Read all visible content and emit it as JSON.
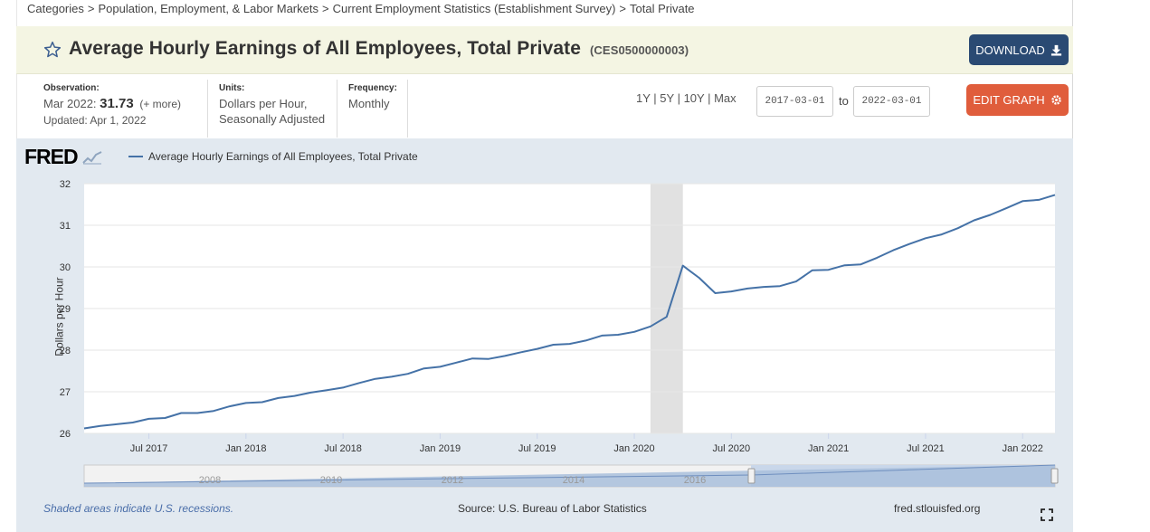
{
  "breadcrumb": [
    "Categories",
    "Population, Employment, & Labor Markets",
    "Current Employment Statistics (Establishment Survey)",
    "Total Private"
  ],
  "header": {
    "title": "Average Hourly Earnings of All Employees, Total Private",
    "series_id": "(CES0500000003)",
    "download_label": "DOWNLOAD"
  },
  "meta": {
    "observation_label": "Observation:",
    "observation_date": "Mar 2022:",
    "observation_value": "31.73",
    "observation_more": "(+ more)",
    "updated": "Updated: Apr 1, 2022",
    "units_label": "Units:",
    "units_line1": "Dollars per Hour,",
    "units_line2": "Seasonally Adjusted",
    "frequency_label": "Frequency:",
    "frequency_value": "Monthly"
  },
  "controls": {
    "ranges": [
      "1Y",
      "5Y",
      "10Y",
      "Max"
    ],
    "start_date": "2017-03-01",
    "to_label": "to",
    "end_date": "2022-03-01",
    "edit_label": "EDIT GRAPH"
  },
  "chart_data": {
    "type": "line",
    "logo": "FRED",
    "title": "",
    "ylabel": "Dollars per Hour",
    "xlabel": "",
    "ylim": [
      26,
      32
    ],
    "yticks": [
      26,
      27,
      28,
      29,
      30,
      31,
      32
    ],
    "xticks": [
      "Jul 2017",
      "Jan 2018",
      "Jul 2018",
      "Jan 2019",
      "Jul 2019",
      "Jan 2020",
      "Jul 2020",
      "Jan 2021",
      "Jul 2021",
      "Jan 2022"
    ],
    "recession": {
      "start": "2020-02",
      "end": "2020-04"
    },
    "grid": true,
    "series": [
      {
        "name": "Average Hourly Earnings of All Employees, Total Private",
        "color": "#4572a7",
        "x_start": "2017-03",
        "values": [
          26.12,
          26.18,
          26.22,
          26.26,
          26.35,
          26.37,
          26.49,
          26.49,
          26.54,
          26.65,
          26.73,
          26.75,
          26.85,
          26.9,
          26.98,
          27.04,
          27.1,
          27.21,
          27.31,
          27.36,
          27.43,
          27.56,
          27.6,
          27.7,
          27.8,
          27.79,
          27.86,
          27.95,
          28.03,
          28.13,
          28.15,
          28.23,
          28.35,
          28.37,
          28.44,
          28.57,
          28.8,
          30.03,
          29.74,
          29.37,
          29.41,
          29.48,
          29.52,
          29.54,
          29.65,
          29.92,
          29.93,
          30.04,
          30.06,
          30.22,
          30.4,
          30.55,
          30.69,
          30.78,
          30.93,
          31.12,
          31.25,
          31.41,
          31.58,
          31.61,
          31.73
        ]
      }
    ],
    "navigator_labels": [
      "2008",
      "2010",
      "2012",
      "2014",
      "2016"
    ]
  },
  "footer": {
    "note": "Shaded areas indicate U.S. recessions.",
    "source": "Source: U.S. Bureau of Labor Statistics",
    "site": "fred.stlouisfed.org"
  },
  "colors": {
    "line": "#4572a7",
    "download": "#2a4a73",
    "edit": "#e05d3c",
    "title_bar": "#f4f5e3",
    "chart_bg": "#e2e9f0"
  }
}
